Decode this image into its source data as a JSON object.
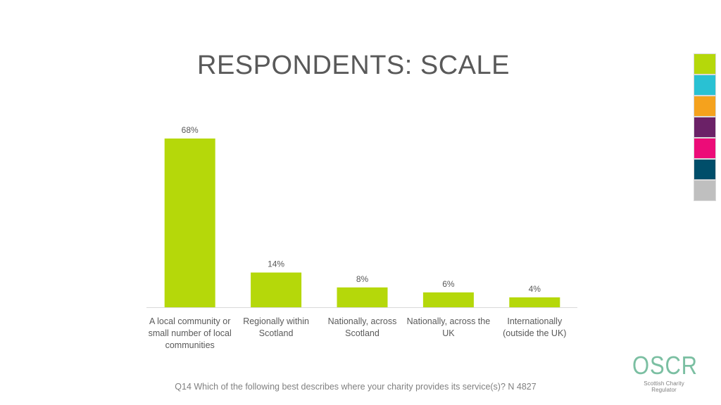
{
  "page_title": "RESPONDENTS: SCALE",
  "footnote": "Q14 Which of the following best describes where your charity provides its service(s)? N 4827",
  "logo": {
    "word": "OSCR",
    "tagline": "Scottish Charity Regulator"
  },
  "swatches": [
    "#b5d80a",
    "#29c1d3",
    "#f5a21d",
    "#6b2167",
    "#ec0c78",
    "#004e6a",
    "#bfbfbf"
  ],
  "bar_color": "#b5d80a",
  "chart_data": {
    "type": "bar",
    "categories": [
      [
        "A local community or",
        "small number of local",
        "communities"
      ],
      [
        "Regionally within",
        "Scotland"
      ],
      [
        "Nationally, across",
        "Scotland"
      ],
      [
        "Nationally, across the",
        "UK"
      ],
      [
        "Internationally",
        "(outside the UK)"
      ]
    ],
    "values": [
      68,
      14,
      8,
      6,
      4
    ],
    "data_labels": [
      "68%",
      "14%",
      "8%",
      "6%",
      "4%"
    ],
    "ylim": [
      0,
      70
    ],
    "grid": false
  }
}
